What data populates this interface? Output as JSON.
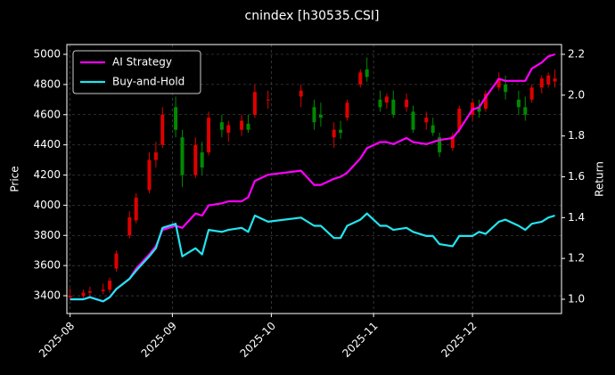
{
  "chart_data": {
    "type": "candlestick",
    "title": "cnindex [h30535.CSI]",
    "ylabel": "Price",
    "y2label": "Return",
    "x": [
      "2025-08-01",
      "2025-08-05",
      "2025-08-07",
      "2025-08-11",
      "2025-08-13",
      "2025-08-15",
      "2025-08-19",
      "2025-08-21",
      "2025-08-25",
      "2025-08-27",
      "2025-08-29",
      "2025-09-02",
      "2025-09-04",
      "2025-09-08",
      "2025-09-10",
      "2025-09-12",
      "2025-09-16",
      "2025-09-18",
      "2025-09-22",
      "2025-09-24",
      "2025-09-26",
      "2025-09-30",
      "2025-10-10",
      "2025-10-14",
      "2025-10-16",
      "2025-10-20",
      "2025-10-22",
      "2025-10-24",
      "2025-10-28",
      "2025-10-30",
      "2025-11-03",
      "2025-11-05",
      "2025-11-07",
      "2025-11-11",
      "2025-11-13",
      "2025-11-17",
      "2025-11-19",
      "2025-11-21",
      "2025-11-25",
      "2025-11-27",
      "2025-12-01",
      "2025-12-03",
      "2025-12-05",
      "2025-12-09",
      "2025-12-11",
      "2025-12-15",
      "2025-12-17",
      "2025-12-19",
      "2025-12-22",
      "2025-12-24",
      "2025-12-26"
    ],
    "open": [
      3390,
      3400,
      3420,
      3430,
      3440,
      3580,
      3800,
      3900,
      4100,
      4300,
      4400,
      4650,
      4450,
      4200,
      4350,
      4350,
      4550,
      4480,
      4500,
      4540,
      4600,
      4700,
      4720,
      4650,
      4600,
      4450,
      4500,
      4580,
      4800,
      4900,
      4700,
      4680,
      4700,
      4650,
      4620,
      4550,
      4530,
      4450,
      4380,
      4500,
      4600,
      4650,
      4640,
      4780,
      4800,
      4700,
      4650,
      4700,
      4780,
      4800,
      4820
    ],
    "high": [
      3450,
      3440,
      3460,
      3480,
      3520,
      3700,
      3960,
      4080,
      4350,
      4420,
      4650,
      4720,
      4500,
      4450,
      4420,
      4620,
      4600,
      4560,
      4600,
      4600,
      4800,
      4760,
      4800,
      4700,
      4680,
      4550,
      4560,
      4700,
      4900,
      4980,
      4760,
      4740,
      4760,
      4740,
      4660,
      4620,
      4580,
      4480,
      4480,
      4660,
      4700,
      4700,
      4760,
      4880,
      4860,
      4760,
      4720,
      4800,
      4860,
      4880,
      4900
    ],
    "low": [
      3370,
      3380,
      3400,
      3410,
      3420,
      3560,
      3780,
      3880,
      4080,
      4250,
      4380,
      4450,
      4120,
      4180,
      4200,
      4330,
      4450,
      4420,
      4460,
      4480,
      4580,
      4640,
      4650,
      4500,
      4520,
      4380,
      4440,
      4560,
      4780,
      4820,
      4620,
      4640,
      4580,
      4620,
      4480,
      4500,
      4460,
      4320,
      4360,
      4480,
      4560,
      4580,
      4620,
      4760,
      4700,
      4600,
      4560,
      4680,
      4740,
      4780,
      4780
    ],
    "close": [
      3400,
      3420,
      3430,
      3440,
      3500,
      3680,
      3920,
      4050,
      4300,
      4350,
      4600,
      4500,
      4200,
      4400,
      4250,
      4580,
      4500,
      4530,
      4560,
      4500,
      4750,
      4700,
      4760,
      4550,
      4580,
      4500,
      4480,
      4680,
      4880,
      4850,
      4650,
      4720,
      4600,
      4700,
      4500,
      4580,
      4480,
      4350,
      4460,
      4640,
      4680,
      4620,
      4740,
      4840,
      4750,
      4650,
      4600,
      4780,
      4840,
      4860,
      4840
    ],
    "up_color": "#e00000",
    "down_color": "#008a00",
    "series": [
      {
        "name": "AI Strategy",
        "color": "#ff00ff",
        "axis": "y2",
        "values": [
          1.0,
          1.0,
          1.01,
          0.99,
          1.01,
          1.05,
          1.1,
          1.15,
          1.22,
          1.26,
          1.34,
          1.36,
          1.35,
          1.42,
          1.41,
          1.46,
          1.47,
          1.48,
          1.48,
          1.5,
          1.58,
          1.61,
          1.63,
          1.56,
          1.56,
          1.59,
          1.6,
          1.62,
          1.69,
          1.74,
          1.77,
          1.77,
          1.76,
          1.79,
          1.77,
          1.76,
          1.77,
          1.78,
          1.79,
          1.83,
          1.93,
          1.94,
          1.99,
          2.08,
          2.07,
          2.07,
          2.07,
          2.13,
          2.16,
          2.19,
          2.2
        ]
      },
      {
        "name": "Buy-and-Hold",
        "color": "#22e5f0",
        "axis": "y2",
        "values": [
          1.0,
          1.0,
          1.01,
          0.99,
          1.01,
          1.05,
          1.1,
          1.14,
          1.21,
          1.25,
          1.35,
          1.37,
          1.21,
          1.25,
          1.22,
          1.34,
          1.33,
          1.34,
          1.35,
          1.33,
          1.41,
          1.38,
          1.4,
          1.36,
          1.36,
          1.3,
          1.3,
          1.36,
          1.39,
          1.42,
          1.36,
          1.36,
          1.34,
          1.35,
          1.33,
          1.31,
          1.31,
          1.27,
          1.26,
          1.31,
          1.31,
          1.33,
          1.32,
          1.38,
          1.39,
          1.36,
          1.34,
          1.37,
          1.38,
          1.4,
          1.41
        ]
      }
    ],
    "xlim": [
      "2025-07-31",
      "2025-12-28"
    ],
    "xticks": [
      {
        "value": "2025-08-01",
        "label": "2025-08"
      },
      {
        "value": "2025-09-01",
        "label": "2025-09"
      },
      {
        "value": "2025-10-01",
        "label": "2025-10"
      },
      {
        "value": "2025-11-01",
        "label": "2025-11"
      },
      {
        "value": "2025-12-01",
        "label": "2025-12"
      }
    ],
    "ylim": [
      3282,
      5065
    ],
    "yticks": [
      3400,
      3600,
      3800,
      4000,
      4200,
      4400,
      4600,
      4800,
      5000
    ],
    "y2lim": [
      0.93,
      2.248
    ],
    "y2ticks": [
      {
        "value": 1,
        "label": "1.0"
      },
      1.2,
      1.4,
      1.6,
      1.8,
      {
        "value": 2,
        "label": "2.0"
      },
      2.2
    ],
    "grid": true,
    "legend": "upper left"
  }
}
